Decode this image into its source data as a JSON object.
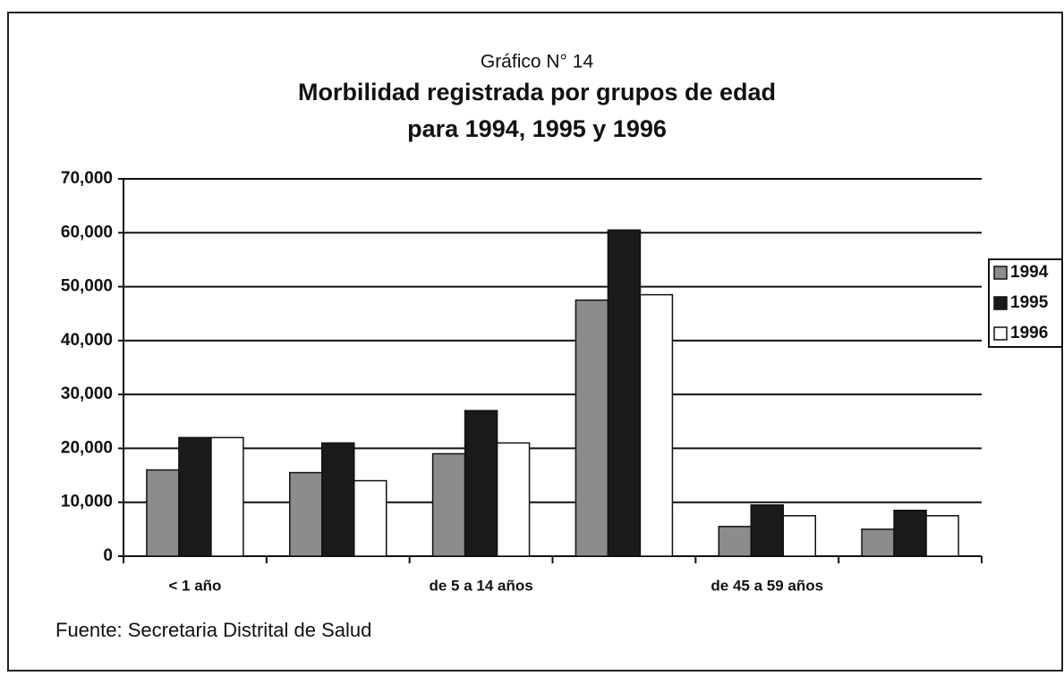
{
  "chart_data": {
    "type": "bar",
    "supertitle": "Gráfico N° 14",
    "title": [
      "Morbilidad registrada por grupos de edad",
      "para 1994, 1995 y 1996"
    ],
    "categories": [
      "< 1 año",
      null,
      "de 5 a 14 años",
      null,
      "de 45 a 59 años",
      null
    ],
    "series": [
      {
        "name": "1994",
        "color": "#8c8c8c",
        "values": [
          16000,
          15500,
          19000,
          47500,
          5500,
          5000
        ]
      },
      {
        "name": "1995",
        "color": "#1a1a1a",
        "values": [
          22000,
          21000,
          27000,
          60500,
          9500,
          8500
        ]
      },
      {
        "name": "1996",
        "color": "#ffffff",
        "values": [
          22000,
          14000,
          21000,
          48500,
          7500,
          7500
        ]
      }
    ],
    "ylim": [
      0,
      70000
    ],
    "yticks": [
      0,
      {
        "value": 10000,
        "label": "10,000"
      },
      {
        "value": 20000,
        "label": "20,000"
      },
      {
        "value": 30000,
        "label": "30,000"
      },
      {
        "value": 40000,
        "label": "40,000"
      },
      {
        "value": 50000,
        "label": "50,000"
      },
      {
        "value": 60000,
        "label": "60,000"
      },
      {
        "value": 70000,
        "label": "70,000"
      }
    ],
    "grid": true,
    "legend": "right",
    "source": "Fuente: Secretaria Distrital de Salud"
  }
}
